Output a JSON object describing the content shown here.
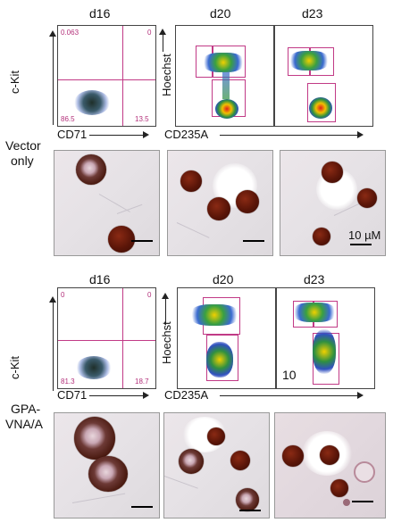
{
  "row1": {
    "headers": [
      "d16",
      "d20",
      "d23"
    ],
    "group_label_lines": [
      "Vector",
      "only"
    ],
    "y_label_left": "c-Kit",
    "x_label_left": "CD71",
    "y_label_right": "Hoechst",
    "x_label_right": "CD235A",
    "d16_quadrants": {
      "ul": "0.063",
      "ur": "0",
      "ll": "86.5",
      "lr": "13.5"
    },
    "scale_bar_label": "10 µM"
  },
  "row2": {
    "headers": [
      "d16",
      "d20",
      "d23"
    ],
    "group_label_lines": [
      "GPA-",
      "VNA/A"
    ],
    "y_label_left": "c-Kit",
    "x_label_left": "CD71",
    "y_label_right": "Hoechst",
    "x_label_right": "CD235A",
    "d16_quadrants": {
      "ul": "0",
      "ur": "0",
      "ll": "81.3",
      "lr": "18.7"
    },
    "d23_corner_text": "10"
  },
  "colors": {
    "gate": "#c13a86",
    "cell": "#5a1508",
    "axis": "#222222"
  }
}
